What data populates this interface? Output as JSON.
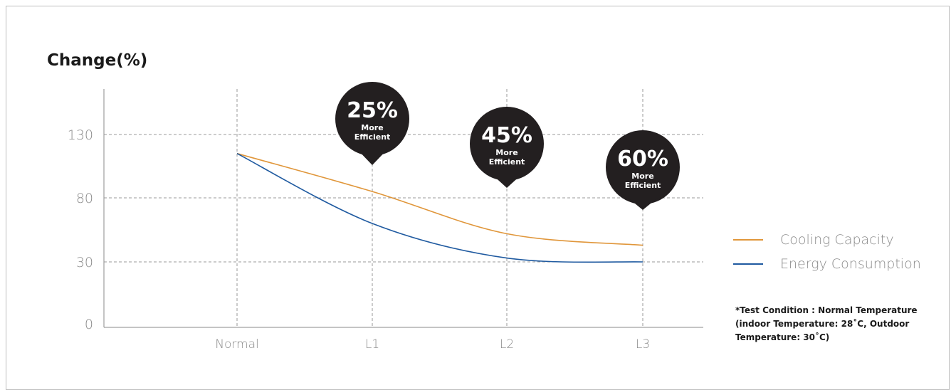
{
  "chart_data": {
    "type": "line",
    "title": "Change(%)",
    "categories": [
      "Normal",
      "L1",
      "L2",
      "L3"
    ],
    "yticks": [
      0,
      30,
      80,
      130
    ],
    "ylim": [
      0,
      150
    ],
    "grid": true,
    "legend_position": "right",
    "series": [
      {
        "name": "Cooling Capacity",
        "color": "#e0963a",
        "values": [
          115,
          85,
          52,
          43
        ]
      },
      {
        "name": "Energy Consumption",
        "color": "#1f5aa0",
        "values": [
          115,
          60,
          33,
          30
        ]
      }
    ],
    "callouts": [
      {
        "category": "L1",
        "value": "25%",
        "line1": "More",
        "line2": "Efficient"
      },
      {
        "category": "L2",
        "value": "45%",
        "line1": "More",
        "line2": "Efficient"
      },
      {
        "category": "L3",
        "value": "60%",
        "line1": "More",
        "line2": "Efficient"
      }
    ],
    "note": "*Test Condition : Normal Temperature (indoor Temperature: 28˚C, Outdoor Temperature: 30˚C)"
  }
}
